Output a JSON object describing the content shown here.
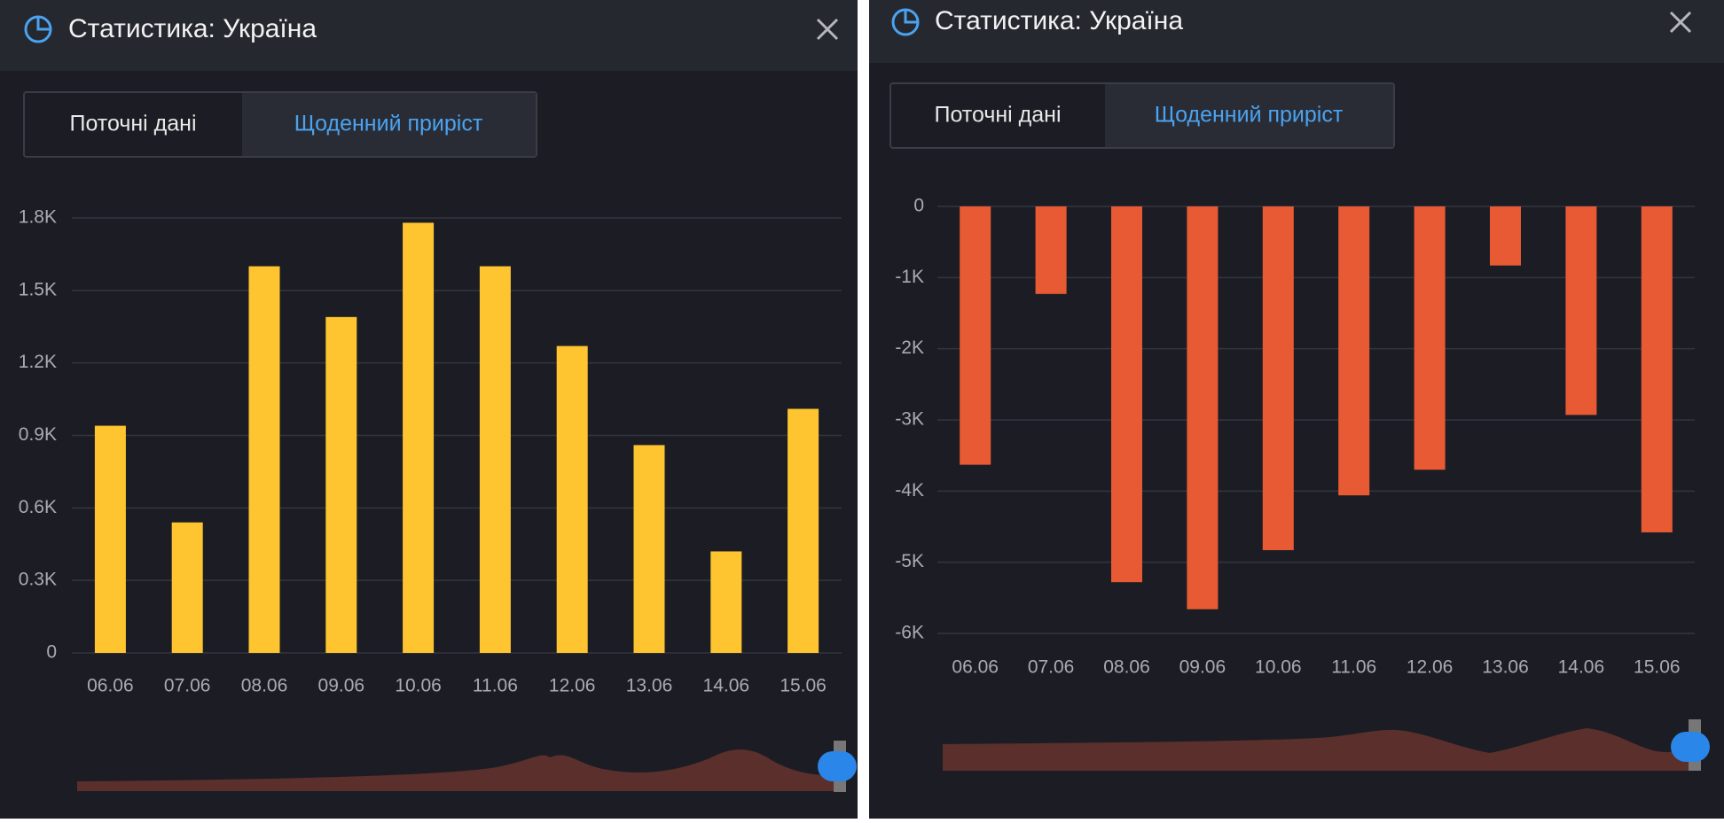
{
  "panels": [
    {
      "title": "Статистика: Україна",
      "tabs": [
        "Поточні дані",
        "Щоденний приріст"
      ]
    },
    {
      "title": "Статистика: Україна",
      "tabs": [
        "Поточні дані",
        "Щоденний приріст"
      ]
    }
  ],
  "chart_data": [
    {
      "type": "bar",
      "color": "#fec530",
      "grid": true,
      "categories": [
        "06.06",
        "07.06",
        "08.06",
        "09.06",
        "10.06",
        "11.06",
        "12.06",
        "13.06",
        "14.06",
        "15.06"
      ],
      "values": [
        940,
        540,
        1600,
        1390,
        1780,
        1600,
        1270,
        860,
        420,
        1010
      ],
      "ylim": [
        0,
        1800
      ],
      "yticks": [
        0,
        {
          "value": 300,
          "label": "0.3K"
        },
        {
          "value": 600,
          "label": "0.6K"
        },
        {
          "value": 900,
          "label": "0.9K"
        },
        {
          "value": 1200,
          "label": "1.2K"
        },
        {
          "value": 1500,
          "label": "1.5K"
        },
        {
          "value": 1800,
          "label": "1.8K"
        }
      ]
    },
    {
      "type": "bar",
      "color": "#e85a34",
      "grid": true,
      "categories": [
        "06.06",
        "07.06",
        "08.06",
        "09.06",
        "10.06",
        "11.06",
        "12.06",
        "13.06",
        "14.06",
        "15.06"
      ],
      "values": [
        -3630,
        -1230,
        -5280,
        -5660,
        -4830,
        -4060,
        -3700,
        -830,
        -2930,
        -4580
      ],
      "ylim": [
        -6000,
        0
      ],
      "yticks": [
        0,
        {
          "value": -1000,
          "label": "-1K"
        },
        {
          "value": -2000,
          "label": "-2K"
        },
        {
          "value": -3000,
          "label": "-3K"
        },
        {
          "value": -4000,
          "label": "-4K"
        },
        {
          "value": -5000,
          "label": "-5K"
        },
        {
          "value": -6000,
          "label": "-6K"
        }
      ]
    }
  ]
}
